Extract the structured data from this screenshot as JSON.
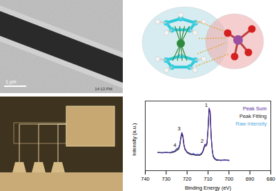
{
  "panels": {
    "tem_image": {
      "scale_bar": "1 μm",
      "timestamp": "14:13 PM"
    }
  },
  "chart_data": {
    "type": "line",
    "x_label": "Binding Energy (eV)",
    "y_label": "Intensity (a.u.)",
    "x": [
      734,
      732,
      730,
      728,
      727,
      726,
      725,
      724.5,
      724,
      723.5,
      723,
      722.5,
      722,
      721.5,
      721,
      720,
      719,
      718,
      717,
      716,
      715,
      714,
      713,
      712.5,
      712,
      711.5,
      711,
      710.5,
      710,
      709.5,
      709,
      708.5,
      708,
      707.5,
      707,
      706,
      705,
      704,
      702,
      700
    ],
    "series": [
      {
        "name": "Raw Intensity",
        "color": "#4fa8e0",
        "values": [
          27,
          25,
          27,
          25,
          28,
          27,
          32,
          31,
          34,
          37,
          49,
          54,
          51,
          37,
          32,
          26,
          26,
          23,
          25,
          22,
          24,
          22,
          26,
          27,
          34,
          37,
          38,
          39,
          61,
          89,
          86,
          49,
          31,
          20,
          19,
          15,
          16,
          14,
          16,
          14
        ]
      },
      {
        "name": "Peak Fitting",
        "color": "#222222",
        "values": [
          26,
          26,
          26,
          26,
          26,
          27,
          29,
          30,
          31,
          36,
          46,
          53,
          48,
          36,
          30,
          26,
          24,
          23,
          23,
          22,
          22,
          22,
          24,
          27,
          31,
          36,
          35,
          38,
          58,
          88,
          83,
          48,
          29,
          20,
          17,
          15,
          15,
          15,
          15,
          15
        ]
      },
      {
        "name": "Peak Sum",
        "color": "#5b2a9e",
        "values": [
          26,
          26,
          26,
          26,
          27,
          28,
          31,
          32,
          33,
          38,
          48,
          55,
          50,
          38,
          31,
          27,
          25,
          24,
          24,
          23,
          23,
          23,
          25,
          28,
          33,
          38,
          37,
          40,
          60,
          90,
          85,
          50,
          30,
          21,
          18,
          16,
          15,
          15,
          15,
          15
        ]
      }
    ],
    "annotations": [
      {
        "text": "1",
        "x": 709.5,
        "y": 94
      },
      {
        "text": "2",
        "x": 711.5,
        "y": 43
      },
      {
        "text": "3",
        "x": 722.5,
        "y": 60
      },
      {
        "text": "4",
        "x": 724.5,
        "y": 37
      }
    ],
    "xlim": [
      740,
      680
    ],
    "xticks": [
      740,
      730,
      720,
      710,
      700,
      690,
      680
    ],
    "ylim": [
      0,
      100
    ],
    "tick_labels": "x",
    "legend": "top-right",
    "grid": false
  }
}
